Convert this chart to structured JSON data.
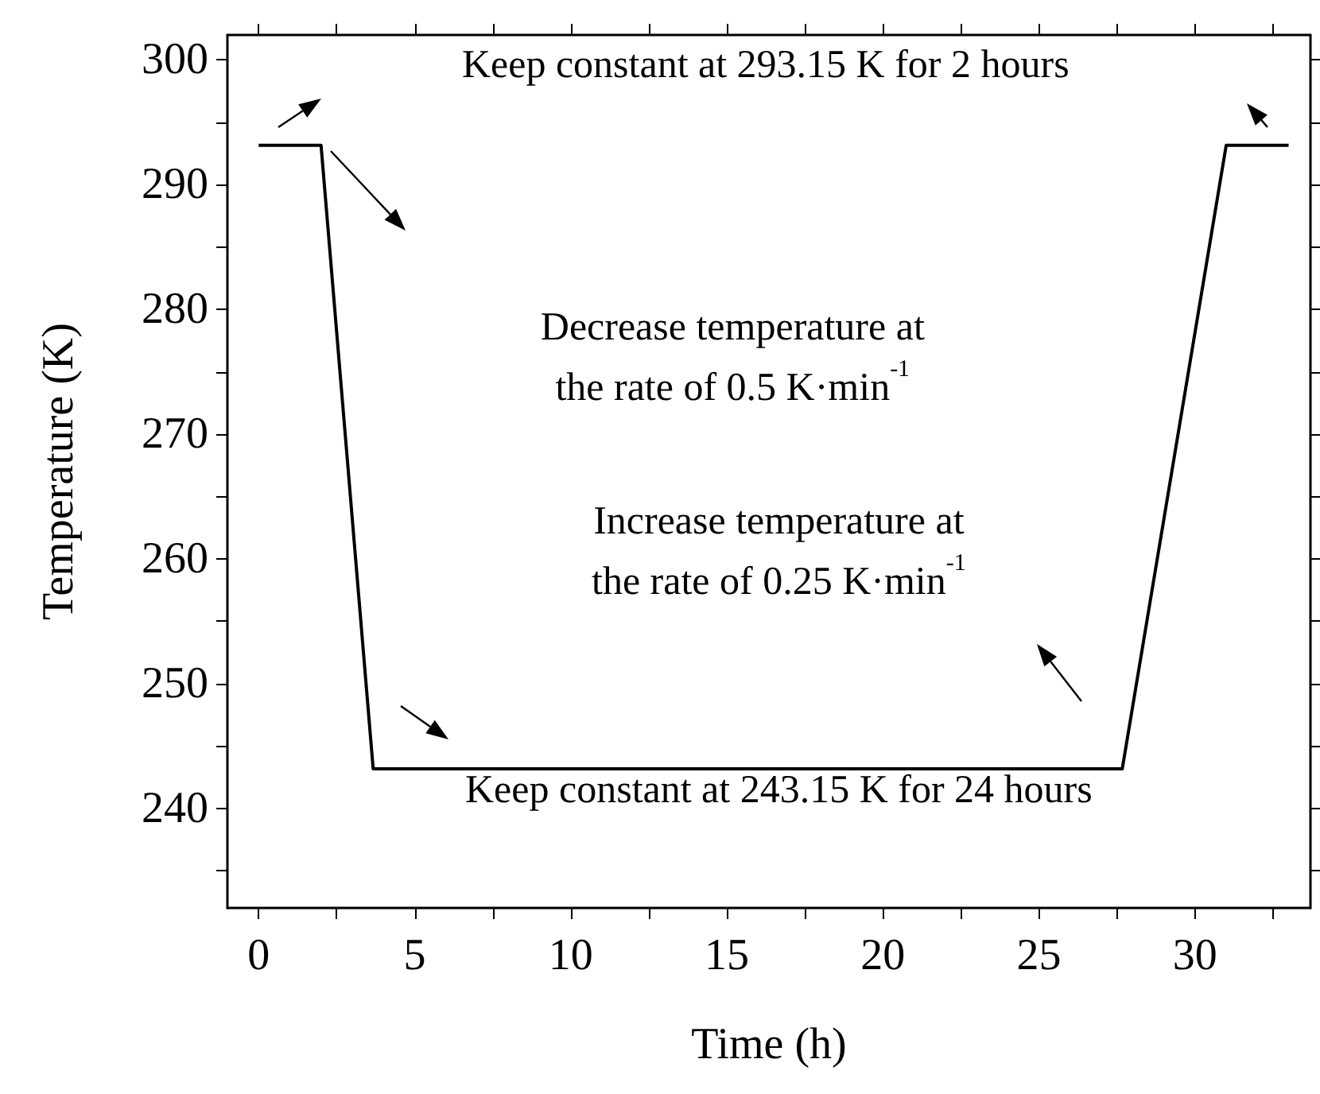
{
  "chart_data": {
    "type": "line",
    "xlabel": "Time (h)",
    "ylabel": "Temperature (K)",
    "x": [
      0,
      2,
      3.67,
      27.67,
      31,
      33
    ],
    "series": [
      {
        "color": "#000000",
        "values": [
          293.15,
          293.15,
          243.15,
          243.15,
          293.15,
          293.15
        ]
      }
    ],
    "xlim": [
      -1,
      33.7
    ],
    "xticks": [
      0,
      5,
      10,
      15,
      20,
      25,
      30
    ],
    "ylim": [
      232,
      302
    ],
    "yticks": [
      240,
      250,
      260,
      270,
      280,
      290,
      300
    ],
    "grid": false,
    "marker": "none",
    "line_style": "solid",
    "annotations": [
      "Keep constant at 293.15 K for 2 hours",
      "Decrease temperature at\nthe rate of 0.5 K·min$^{-1}$",
      "Increase temperature at\nthe rate of 0.25 K·min$^{-1}$",
      "Keep constant at 243.15 K for 24 hours"
    ]
  }
}
